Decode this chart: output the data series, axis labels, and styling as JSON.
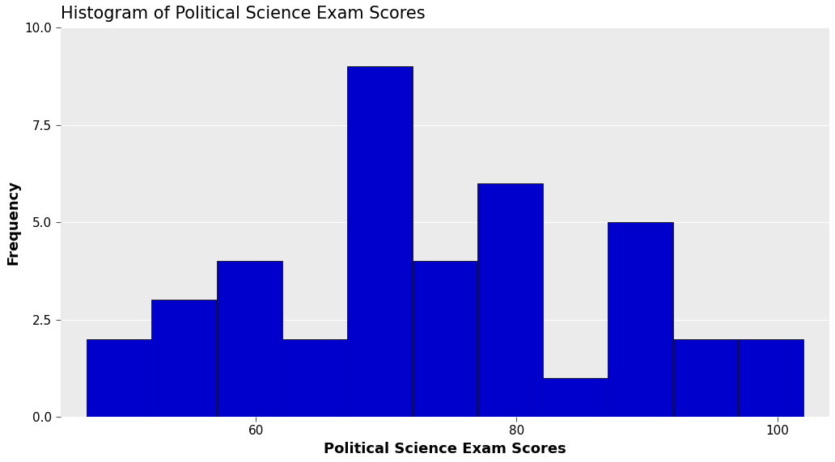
{
  "title": "Histogram of Political Science Exam Scores",
  "xlabel": "Political Science Exam Scores",
  "ylabel": "Frequency",
  "bar_color": "#0000CC",
  "bar_edgecolor": "#111111",
  "panel_background": "#EBEBEB",
  "figure_background": "#FFFFFF",
  "bins": [
    47,
    52,
    57,
    62,
    67,
    72,
    77,
    82,
    87,
    92,
    97,
    102
  ],
  "counts": [
    2,
    3,
    4,
    2,
    9,
    4,
    6,
    1,
    5,
    2,
    2
  ],
  "xlim": [
    45,
    104
  ],
  "ylim": [
    0,
    10
  ],
  "xticks": [
    60,
    80,
    100
  ],
  "yticks": [
    0.0,
    2.5,
    5.0,
    7.5,
    10.0
  ],
  "ytick_labels": [
    "0.0",
    "2.5",
    "5.0",
    "7.5",
    "10.0"
  ],
  "title_fontsize": 15,
  "axis_label_fontsize": 13,
  "tick_fontsize": 11,
  "grid_color": "#FFFFFF",
  "bar_linewidth": 0.6
}
